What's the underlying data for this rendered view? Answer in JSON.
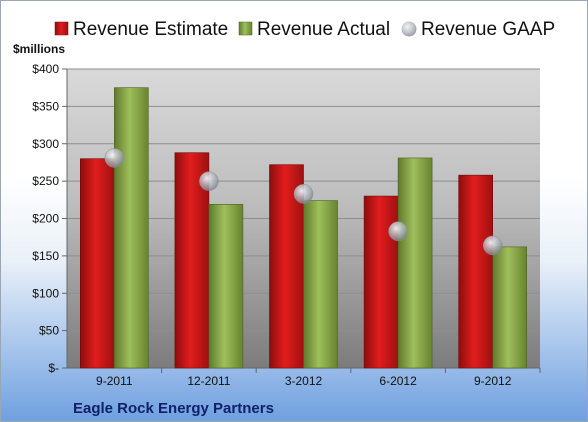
{
  "colors": {
    "estimate": "#d11a1a",
    "actual": "#8aaa4a",
    "gaap": "#b9bec4",
    "company": "#10206a"
  },
  "chart_data": {
    "type": "bar",
    "ylabel": "$millions",
    "ylim": [
      0,
      400
    ],
    "y_ticks": [
      0,
      50,
      100,
      150,
      200,
      250,
      300,
      350,
      400
    ],
    "y_tick_labels": [
      "$-",
      "$50",
      "$100",
      "$150",
      "$200",
      "$250",
      "$300",
      "$350",
      "$400"
    ],
    "categories": [
      "9-2011",
      "12-2011",
      "3-2012",
      "6-2012",
      "9-2012"
    ],
    "series": [
      {
        "name": "Revenue Estimate",
        "kind": "bar",
        "color": "#d11a1a",
        "values": [
          280,
          288,
          272,
          230,
          258
        ]
      },
      {
        "name": "Revenue Actual",
        "kind": "bar",
        "color": "#8aaa4a",
        "values": [
          375,
          219,
          224,
          281,
          162
        ]
      },
      {
        "name": "Revenue GAAP",
        "kind": "point",
        "color": "#b9bec4",
        "values": [
          281,
          250,
          233,
          183,
          164
        ]
      }
    ],
    "legend_position": "top",
    "grid": true,
    "footer": "Eagle Rock Energy Partners"
  }
}
